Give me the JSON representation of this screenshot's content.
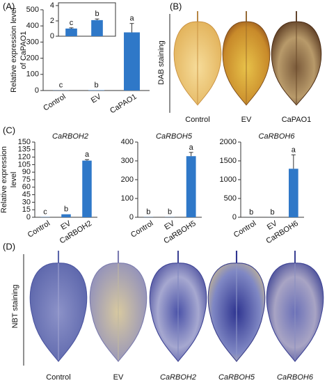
{
  "panels": {
    "a": "(A)",
    "b": "(B)",
    "c": "(C)",
    "d": "(D)"
  },
  "dab": {
    "label": "DAB staining",
    "captions": [
      "Control",
      "EV",
      "CaPAO1"
    ]
  },
  "nbt": {
    "label": "NBT staining",
    "captions": [
      "Control",
      "EV",
      "CaRBOH2",
      "CaRBOH5",
      "CaRBOH6"
    ]
  },
  "chart_data": [
    {
      "type": "bar",
      "ylabel": [
        "Relative expression level",
        "of CaPAO1"
      ],
      "categories": [
        "Control",
        "EV",
        "CaPAO1"
      ],
      "values": [
        1,
        2.1,
        360
      ],
      "errors": [
        null,
        null,
        55
      ],
      "annotations": [
        "c",
        "b",
        "a"
      ],
      "color": "#2f78c8",
      "ylim": [
        0,
        500
      ],
      "yticks": [
        0,
        100,
        200,
        300,
        400,
        500
      ]
    },
    {
      "type": "bar",
      "values": [
        1.0,
        2.1
      ],
      "errors": [
        0.1,
        0.15
      ],
      "annotations": [
        "c",
        "b"
      ],
      "color": "#2f78c8",
      "ylim": [
        0,
        4
      ],
      "yticks": [
        0,
        2,
        4
      ]
    },
    {
      "type": "bar",
      "title": "CaRBOH2",
      "ylabel": [
        "Relative expression",
        "level"
      ],
      "categories": [
        "Control",
        "EV",
        "CaRBOH2"
      ],
      "values": [
        0.5,
        6,
        113
      ],
      "errors": [
        null,
        null,
        2
      ],
      "annotations": [
        "c",
        "b",
        "a"
      ],
      "color": "#2f78c8",
      "ylim": [
        0,
        150
      ],
      "yticks": [
        0,
        15,
        30,
        45,
        60,
        75,
        90,
        105,
        120,
        135,
        150
      ]
    },
    {
      "type": "bar",
      "title": "CaRBOH5",
      "categories": [
        "Control",
        "EV",
        "CaRBOH5"
      ],
      "values": [
        1,
        1,
        325
      ],
      "errors": [
        null,
        null,
        20
      ],
      "annotations": [
        "b",
        "b",
        "a"
      ],
      "color": "#2f78c8",
      "ylim": [
        0,
        400
      ],
      "yticks": [
        0,
        100,
        200,
        300,
        400
      ]
    },
    {
      "type": "bar",
      "title": "CaRBOH6",
      "categories": [
        "Control",
        "EV",
        "CaRBOH6"
      ],
      "values": [
        1,
        1,
        1290
      ],
      "errors": [
        null,
        null,
        370
      ],
      "annotations": [
        "b",
        "b",
        "a"
      ],
      "color": "#2f78c8",
      "ylim": [
        0,
        2000
      ],
      "yticks": [
        0,
        500,
        1000,
        1500,
        2000
      ]
    }
  ]
}
